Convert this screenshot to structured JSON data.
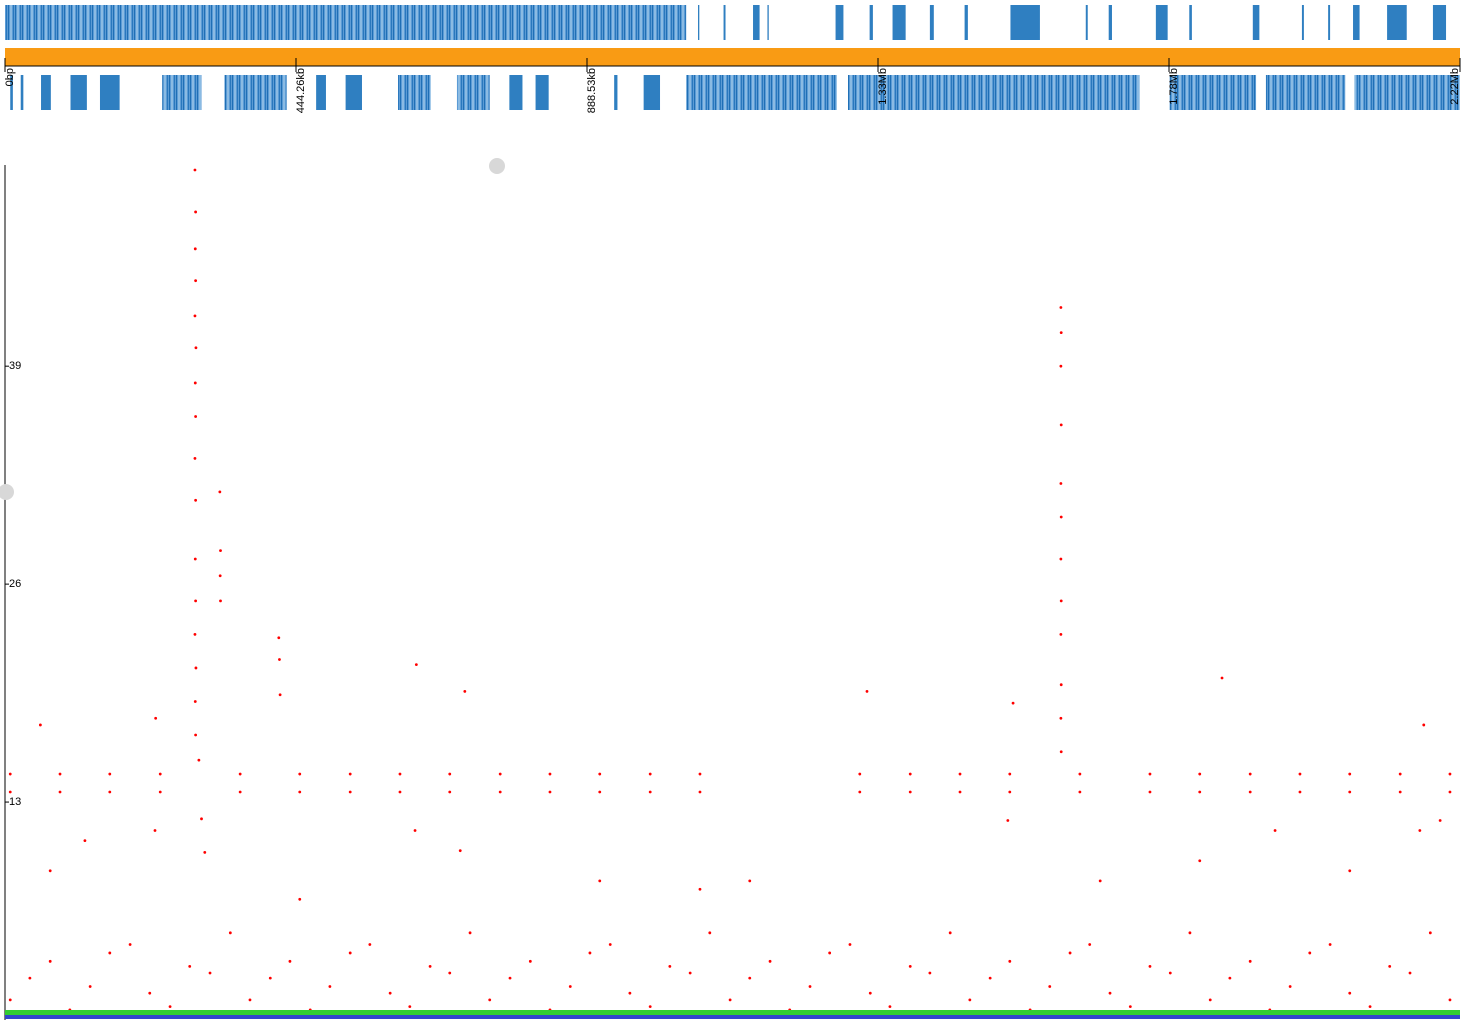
{
  "chart_data": {
    "type": "scatter",
    "color": "#ff0000",
    "xlim": [
      0,
      2221316
    ],
    "xticks": [
      {
        "value": 0,
        "label": "0bp"
      },
      {
        "value": 444263,
        "label": "444.26kb"
      },
      {
        "value": 888526,
        "label": "888.53kb"
      },
      {
        "value": 1332790,
        "label": "1.33Mb"
      },
      {
        "value": 1777053,
        "label": "1.78Mb"
      },
      {
        "value": 2221316,
        "label": "2.22Mb"
      }
    ],
    "ruler_color": "#f99b14",
    "ylim": [
      0,
      51
    ],
    "yticks": [
      13,
      26,
      39
    ],
    "tracks": [
      {
        "color": "#2f7fc1",
        "features": [
          [
            0,
            1040000
          ],
          [
            1058000,
            1060000
          ],
          [
            1097000,
            1100000
          ],
          [
            1142000,
            1152000
          ],
          [
            1164000,
            1166000
          ],
          [
            1268000,
            1280000
          ],
          [
            1320000,
            1325000
          ],
          [
            1355000,
            1375000
          ],
          [
            1412000,
            1418000
          ],
          [
            1465000,
            1470000
          ],
          [
            1535000,
            1580000
          ],
          [
            1650000,
            1653000
          ],
          [
            1685000,
            1690000
          ],
          [
            1757000,
            1775000
          ],
          [
            1808000,
            1812000
          ],
          [
            1905000,
            1915000
          ],
          [
            1980000,
            1983000
          ],
          [
            2020000,
            2023000
          ],
          [
            2058000,
            2068000
          ],
          [
            2110000,
            2140000
          ],
          [
            2180000,
            2200000
          ]
        ]
      },
      {
        "color": "#2f7fc1",
        "features": [
          [
            8000,
            12000
          ],
          [
            24000,
            28000
          ],
          [
            55000,
            70000
          ],
          [
            100000,
            125000
          ],
          [
            145000,
            175000
          ],
          [
            240000,
            300000
          ],
          [
            335000,
            430000
          ],
          [
            475000,
            490000
          ],
          [
            520000,
            545000
          ],
          [
            600000,
            650000
          ],
          [
            690000,
            740000
          ],
          [
            770000,
            790000
          ],
          [
            810000,
            830000
          ],
          [
            930000,
            935000
          ],
          [
            975000,
            1000000
          ],
          [
            1040000,
            1270000
          ],
          [
            1287000,
            1732000
          ],
          [
            1778000,
            1910000
          ],
          [
            1925000,
            2046000
          ],
          [
            2060000,
            2221000
          ]
        ]
      }
    ],
    "x": [
      290000,
      291000,
      290500,
      291000,
      290000,
      291500,
      290500,
      291000,
      290000,
      291000,
      290500,
      291000,
      290000,
      291500,
      290500,
      291000,
      296000,
      300000,
      305000,
      328000,
      329000,
      328500,
      329000,
      418000,
      419000,
      420000,
      1612000,
      1612500,
      1612000,
      1612500,
      1612000,
      1612500,
      1612000,
      1612500,
      1612000,
      1612500,
      1612000,
      1612500,
      1858000,
      1316000,
      702000,
      628000,
      1539000,
      230000,
      54000,
      2166000,
      8000,
      84000,
      160000,
      237000,
      359000,
      450000,
      527000,
      603000,
      679000,
      756000,
      832000,
      908000,
      985000,
      1061000,
      1305000,
      1382000,
      1458000,
      1534000,
      1641000,
      1748000,
      1824000,
      1901000,
      1977000,
      2053000,
      2130000,
      2206000,
      8000,
      84000,
      160000,
      237000,
      359000,
      450000,
      527000,
      603000,
      679000,
      756000,
      832000,
      908000,
      985000,
      1061000,
      1305000,
      1382000,
      1458000,
      1534000,
      1641000,
      1748000,
      1824000,
      1901000,
      1977000,
      2053000,
      2130000,
      2206000,
      122000,
      229000,
      626000,
      695000,
      1531000,
      1939000,
      2160000,
      2191000,
      1137000,
      1061000,
      908000,
      450000,
      69000,
      1672000,
      1824000,
      2053000,
      8000,
      69000,
      130000,
      191000,
      252000,
      313000,
      374000,
      435000,
      496000,
      557000,
      618000,
      679000,
      740000,
      802000,
      863000,
      924000,
      985000,
      1046000,
      1107000,
      1168000,
      1229000,
      1290000,
      1351000,
      1412000,
      1473000,
      1534000,
      1595000,
      1656000,
      1718000,
      1779000,
      1840000,
      1901000,
      1962000,
      2023000,
      2084000,
      2145000,
      2206000,
      38000,
      99000,
      160000,
      221000,
      282000,
      344000,
      405000,
      466000,
      527000,
      588000,
      649000,
      710000,
      771000,
      832000,
      893000,
      954000,
      1015000,
      1076000,
      1137000,
      1198000,
      1259000,
      1321000,
      1382000,
      1443000,
      1504000,
      1565000,
      1626000,
      1687000,
      1748000,
      1809000,
      1870000,
      1931000,
      1992000,
      2053000,
      2114000,
      2176000
    ],
    "values": [
      50.7,
      48.2,
      46,
      44.1,
      42,
      40.1,
      38,
      36,
      33.5,
      31,
      27.5,
      25,
      23,
      21,
      19,
      17,
      15.5,
      12,
      10,
      31.5,
      28,
      26.5,
      25,
      22.8,
      21.5,
      19.4,
      42.5,
      41,
      39,
      35.5,
      32,
      30,
      27.5,
      25,
      23,
      20,
      18,
      16,
      20.4,
      19.6,
      19.6,
      21.2,
      18.9,
      18,
      17.6,
      17.6,
      14.67,
      14.67,
      14.67,
      14.67,
      14.67,
      14.67,
      14.67,
      14.67,
      14.67,
      14.67,
      14.67,
      14.67,
      14.67,
      14.67,
      14.67,
      14.67,
      14.67,
      14.67,
      14.67,
      14.67,
      14.67,
      14.67,
      14.67,
      14.67,
      14.67,
      14.67,
      13.6,
      13.6,
      13.6,
      13.6,
      13.6,
      13.6,
      13.6,
      13.6,
      13.6,
      13.6,
      13.6,
      13.6,
      13.6,
      13.6,
      13.6,
      13.6,
      13.6,
      13.6,
      13.6,
      13.6,
      13.6,
      13.6,
      13.6,
      13.6,
      13.6,
      13.6,
      10.7,
      11.3,
      11.3,
      10.1,
      11.9,
      11.3,
      11.3,
      11.9,
      8.3,
      7.8,
      8.3,
      7.2,
      8.9,
      8.3,
      9.5,
      8.9,
      1.2,
      3.5,
      2,
      4.5,
      0.8,
      2.8,
      1.2,
      3.5,
      2,
      4.5,
      0.8,
      2.8,
      1.2,
      3.5,
      2,
      4.5,
      0.8,
      2.8,
      1.2,
      3.5,
      2,
      4.5,
      0.8,
      2.8,
      1.2,
      3.5,
      2,
      4.5,
      0.8,
      2.8,
      1.2,
      3.5,
      2,
      4.5,
      0.8,
      2.8,
      1.2,
      2.5,
      0.6,
      4,
      1.6,
      3.2,
      5.2,
      2.5,
      0.6,
      4,
      1.6,
      3.2,
      5.2,
      2.5,
      0.6,
      4,
      1.6,
      3.2,
      5.2,
      2.5,
      0.6,
      4,
      1.6,
      3.2,
      5.2,
      2.5,
      0.6,
      4,
      1.6,
      3.2,
      5.2,
      2.5,
      0.6,
      4,
      1.6,
      3.2,
      5.2
    ]
  }
}
